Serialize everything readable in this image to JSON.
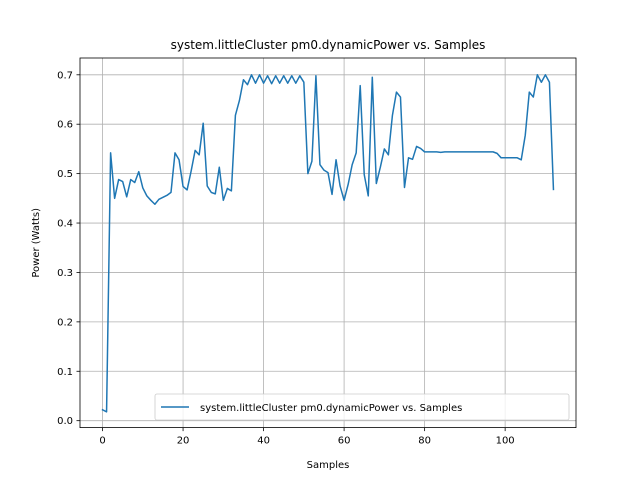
{
  "chart_data": {
    "type": "line",
    "title": "system.littleCluster pm0.dynamicPower vs. Samples",
    "xlabel": "Samples",
    "ylabel": "Power (Watts)",
    "xlim": [
      -5.6,
      117.6
    ],
    "ylim": [
      -0.014,
      0.734
    ],
    "xticks": [
      0,
      20,
      40,
      60,
      80,
      100
    ],
    "yticks": [
      0.0,
      0.1,
      0.2,
      0.3,
      0.4,
      0.5,
      0.6,
      0.7
    ],
    "xtick_labels": [
      "0",
      "20",
      "40",
      "60",
      "80",
      "100"
    ],
    "ytick_labels": [
      "0.0",
      "0.1",
      "0.2",
      "0.3",
      "0.4",
      "0.5",
      "0.6",
      "0.7"
    ],
    "grid": true,
    "legend_position": "lower right",
    "series": [
      {
        "name": "system.littleCluster pm0.dynamicPower vs. Samples",
        "color": "#1f77b4",
        "x": [
          0,
          1,
          2,
          3,
          4,
          5,
          6,
          7,
          8,
          9,
          10,
          11,
          12,
          13,
          14,
          15,
          16,
          17,
          18,
          19,
          20,
          21,
          22,
          23,
          24,
          25,
          26,
          27,
          28,
          29,
          30,
          31,
          32,
          33,
          34,
          35,
          36,
          37,
          38,
          39,
          40,
          41,
          42,
          43,
          44,
          45,
          46,
          47,
          48,
          49,
          50,
          51,
          52,
          53,
          54,
          55,
          56,
          57,
          58,
          59,
          60,
          61,
          62,
          63,
          64,
          65,
          66,
          67,
          68,
          69,
          70,
          71,
          72,
          73,
          74,
          75,
          76,
          77,
          78,
          79,
          80,
          81,
          82,
          83,
          84,
          85,
          86,
          87,
          88,
          89,
          90,
          91,
          92,
          93,
          94,
          95,
          96,
          97,
          98,
          99,
          100,
          101,
          102,
          103,
          104,
          105,
          106,
          107,
          108,
          109,
          110,
          111,
          112
        ],
        "y": [
          0.022,
          0.018,
          0.542,
          0.45,
          0.488,
          0.484,
          0.453,
          0.488,
          0.482,
          0.504,
          0.471,
          0.455,
          0.446,
          0.438,
          0.448,
          0.452,
          0.456,
          0.462,
          0.542,
          0.528,
          0.474,
          0.467,
          0.505,
          0.547,
          0.538,
          0.602,
          0.475,
          0.462,
          0.459,
          0.513,
          0.446,
          0.47,
          0.465,
          0.618,
          0.648,
          0.69,
          0.68,
          0.7,
          0.683,
          0.7,
          0.683,
          0.698,
          0.682,
          0.698,
          0.683,
          0.698,
          0.683,
          0.698,
          0.683,
          0.698,
          0.685,
          0.5,
          0.525,
          0.698,
          0.518,
          0.507,
          0.502,
          0.458,
          0.528,
          0.475,
          0.446,
          0.478,
          0.518,
          0.542,
          0.678,
          0.498,
          0.455,
          0.695,
          0.48,
          0.513,
          0.55,
          0.538,
          0.618,
          0.665,
          0.655,
          0.472,
          0.532,
          0.529,
          0.555,
          0.551,
          0.544,
          0.544,
          0.544,
          0.544,
          0.543,
          0.544,
          0.544,
          0.544,
          0.544,
          0.544,
          0.544,
          0.544,
          0.544,
          0.544,
          0.544,
          0.544,
          0.544,
          0.544,
          0.541,
          0.532,
          0.532,
          0.532,
          0.532,
          0.532,
          0.528,
          0.578,
          0.665,
          0.655,
          0.7,
          0.685,
          0.7,
          0.685,
          0.468
        ]
      }
    ]
  }
}
